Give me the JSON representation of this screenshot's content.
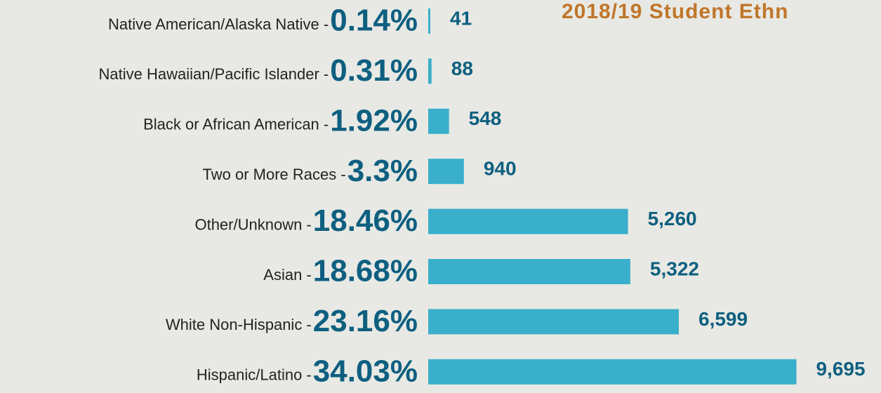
{
  "chart_data": {
    "type": "bar",
    "orientation": "horizontal",
    "title": "2018/19 Student Ethn",
    "categories": [
      "Native American/Alaska Native -",
      "Native Hawaiian/Pacific Islander -",
      "Black or African American -",
      "Two or More Races -",
      "Other/Unknown -",
      "Asian -",
      "White Non-Hispanic -",
      "Hispanic/Latino -"
    ],
    "share_labels": [
      "0.14%",
      "0.31%",
      "1.92%",
      "3.3%",
      "18.46%",
      "18.68%",
      "23.16%",
      "34.03%"
    ],
    "values": [
      41,
      88,
      548,
      940,
      5260,
      5322,
      6599,
      9695
    ],
    "value_labels": [
      "41",
      "88",
      "548",
      "940",
      "5,260",
      "5,322",
      "6,599",
      "9,695"
    ],
    "color": "#3aafcb",
    "xlim": [
      0,
      10000
    ]
  }
}
